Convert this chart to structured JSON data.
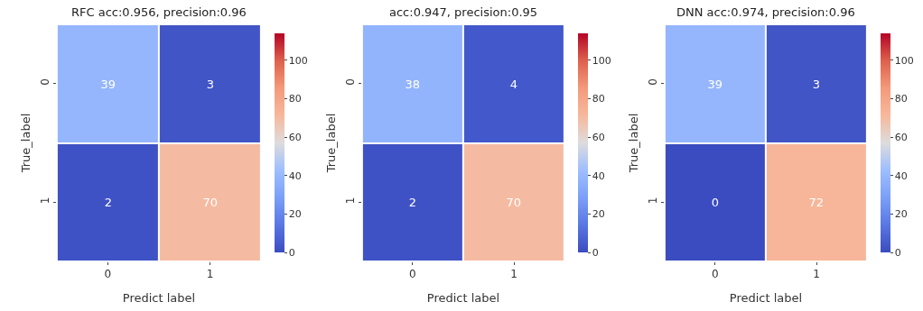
{
  "chart_data": [
    {
      "type": "heatmap",
      "title": "RFC acc:0.956, precision:0.96",
      "xlabel": "Predict label",
      "ylabel": "True_label",
      "categories": [
        "0",
        "1"
      ],
      "y_categories": [
        "0",
        "1"
      ],
      "cells": [
        [
          39,
          3
        ],
        [
          2,
          70
        ]
      ],
      "clim": [
        0,
        114
      ],
      "cticks": [
        0,
        20,
        40,
        60,
        80,
        100
      ],
      "data_labels": true
    },
    {
      "type": "heatmap",
      "title": "acc:0.947, precision:0.95",
      "xlabel": "Predict label",
      "ylabel": "True_label",
      "categories": [
        "0",
        "1"
      ],
      "y_categories": [
        "0",
        "1"
      ],
      "cells": [
        [
          38,
          4
        ],
        [
          2,
          70
        ]
      ],
      "clim": [
        0,
        114
      ],
      "cticks": [
        0,
        20,
        40,
        60,
        80,
        100
      ],
      "data_labels": true
    },
    {
      "type": "heatmap",
      "title": "DNN acc:0.974, precision:0.96",
      "xlabel": "Predict label",
      "ylabel": "True_label",
      "categories": [
        "0",
        "1"
      ],
      "y_categories": [
        "0",
        "1"
      ],
      "cells": [
        [
          39,
          3
        ],
        [
          0,
          72
        ]
      ],
      "clim": [
        0,
        114
      ],
      "cticks": [
        0,
        20,
        40,
        60,
        80,
        100
      ],
      "data_labels": true
    }
  ]
}
